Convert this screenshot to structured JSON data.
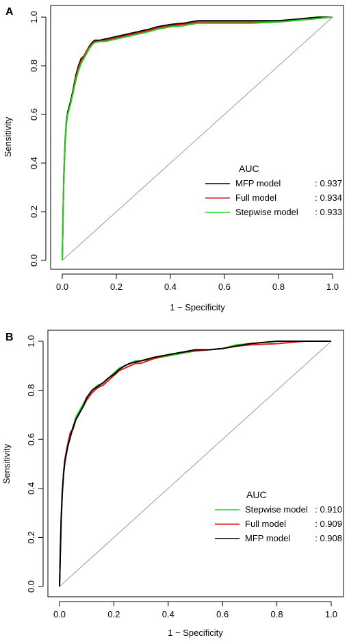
{
  "chart_data": [
    {
      "type": "line",
      "panel_label": "A",
      "xlabel": "1 − Specificity",
      "ylabel": "Sensitivity",
      "xlim": [
        0,
        1
      ],
      "ylim": [
        0,
        1
      ],
      "xticks": [
        "0.0",
        "0.2",
        "0.4",
        "0.6",
        "0.8",
        "1.0"
      ],
      "yticks": [
        "0.0",
        "0.2",
        "0.4",
        "0.6",
        "0.8",
        "1.0"
      ],
      "grid": false,
      "reference_line": {
        "x": [
          0,
          1
        ],
        "y": [
          0,
          1
        ],
        "color": "#999999"
      },
      "legend": {
        "title": "AUC",
        "position": "bottom-right",
        "entries": [
          {
            "label": "MFP model",
            "value": ": 0.937",
            "color": "#000000"
          },
          {
            "label": "Full model",
            "value": ": 0.934",
            "color": "#e31a1c"
          },
          {
            "label": "Stepwise model",
            "value": ": 0.933",
            "color": "#1fd11f"
          }
        ]
      },
      "series": [
        {
          "name": "MFP model",
          "color": "#000000",
          "x": [
            0,
            0.003,
            0.006,
            0.01,
            0.015,
            0.02,
            0.03,
            0.04,
            0.05,
            0.06,
            0.07,
            0.08,
            0.09,
            0.1,
            0.11,
            0.12,
            0.14,
            0.16,
            0.18,
            0.2,
            0.22,
            0.24,
            0.26,
            0.28,
            0.3,
            0.32,
            0.35,
            0.4,
            0.45,
            0.5,
            0.6,
            0.7,
            0.8,
            0.85,
            0.9,
            0.95,
            1.0
          ],
          "y": [
            0,
            0.2,
            0.36,
            0.48,
            0.57,
            0.61,
            0.65,
            0.7,
            0.76,
            0.8,
            0.83,
            0.84,
            0.86,
            0.88,
            0.895,
            0.905,
            0.905,
            0.91,
            0.915,
            0.92,
            0.925,
            0.93,
            0.935,
            0.94,
            0.945,
            0.95,
            0.96,
            0.97,
            0.975,
            0.985,
            0.985,
            0.985,
            0.985,
            0.99,
            0.995,
            1.0,
            1.0
          ]
        },
        {
          "name": "Full model",
          "color": "#e31a1c",
          "x": [
            0,
            0.003,
            0.006,
            0.01,
            0.015,
            0.02,
            0.03,
            0.04,
            0.05,
            0.06,
            0.07,
            0.08,
            0.09,
            0.1,
            0.11,
            0.12,
            0.14,
            0.16,
            0.18,
            0.2,
            0.22,
            0.24,
            0.26,
            0.28,
            0.3,
            0.32,
            0.35,
            0.4,
            0.45,
            0.5,
            0.6,
            0.7,
            0.8,
            0.85,
            0.9,
            0.95,
            1.0
          ],
          "y": [
            0,
            0.2,
            0.35,
            0.47,
            0.56,
            0.6,
            0.64,
            0.69,
            0.75,
            0.79,
            0.82,
            0.84,
            0.86,
            0.875,
            0.89,
            0.9,
            0.9,
            0.905,
            0.91,
            0.915,
            0.92,
            0.925,
            0.93,
            0.935,
            0.94,
            0.945,
            0.955,
            0.965,
            0.97,
            0.98,
            0.98,
            0.98,
            0.98,
            0.985,
            0.99,
            0.995,
            1.0
          ]
        },
        {
          "name": "Stepwise model",
          "color": "#1fd11f",
          "x": [
            0,
            0.003,
            0.006,
            0.01,
            0.015,
            0.02,
            0.03,
            0.04,
            0.05,
            0.06,
            0.07,
            0.08,
            0.09,
            0.1,
            0.11,
            0.12,
            0.14,
            0.16,
            0.18,
            0.2,
            0.22,
            0.24,
            0.26,
            0.28,
            0.3,
            0.32,
            0.35,
            0.4,
            0.45,
            0.5,
            0.6,
            0.7,
            0.8,
            0.85,
            0.9,
            0.95,
            1.0
          ],
          "y": [
            0,
            0.2,
            0.35,
            0.47,
            0.56,
            0.6,
            0.64,
            0.69,
            0.74,
            0.78,
            0.81,
            0.83,
            0.85,
            0.87,
            0.885,
            0.895,
            0.9,
            0.9,
            0.905,
            0.91,
            0.915,
            0.92,
            0.925,
            0.93,
            0.935,
            0.94,
            0.95,
            0.96,
            0.965,
            0.975,
            0.975,
            0.975,
            0.98,
            0.985,
            0.99,
            0.995,
            1.0
          ]
        }
      ]
    },
    {
      "type": "line",
      "panel_label": "B",
      "xlabel": "1 − Specificity",
      "ylabel": "Sensitivity",
      "xlim": [
        0,
        1
      ],
      "ylim": [
        0,
        1
      ],
      "xticks": [
        "0.0",
        "0.2",
        "0.4",
        "0.6",
        "0.8",
        "1.0"
      ],
      "yticks": [
        "0.0",
        "0.2",
        "0.4",
        "0.6",
        "0.8",
        "1.0"
      ],
      "grid": false,
      "reference_line": {
        "x": [
          0,
          1
        ],
        "y": [
          0,
          1
        ],
        "color": "#999999"
      },
      "legend": {
        "title": "AUC",
        "position": "bottom-right",
        "entries": [
          {
            "label": "Stepwise model",
            "value": ": 0.910",
            "color": "#1fd11f"
          },
          {
            "label": "Full model",
            "value": ": 0.909",
            "color": "#e31a1c"
          },
          {
            "label": "MFP model",
            "value": ": 0.908",
            "color": "#000000"
          }
        ]
      },
      "series": [
        {
          "name": "Stepwise model",
          "color": "#1fd11f",
          "x": [
            0,
            0.003,
            0.006,
            0.01,
            0.015,
            0.02,
            0.03,
            0.04,
            0.05,
            0.06,
            0.07,
            0.08,
            0.09,
            0.1,
            0.12,
            0.14,
            0.16,
            0.18,
            0.2,
            0.22,
            0.24,
            0.26,
            0.28,
            0.3,
            0.35,
            0.4,
            0.45,
            0.5,
            0.55,
            0.6,
            0.65,
            0.7,
            0.8,
            0.9,
            1.0
          ],
          "y": [
            0,
            0.15,
            0.27,
            0.38,
            0.46,
            0.51,
            0.57,
            0.62,
            0.65,
            0.69,
            0.71,
            0.73,
            0.75,
            0.77,
            0.8,
            0.82,
            0.83,
            0.85,
            0.87,
            0.89,
            0.9,
            0.91,
            0.92,
            0.92,
            0.93,
            0.94,
            0.95,
            0.96,
            0.965,
            0.97,
            0.985,
            0.99,
            1.0,
            1.0,
            1.0
          ]
        },
        {
          "name": "Full model",
          "color": "#e31a1c",
          "x": [
            0,
            0.003,
            0.006,
            0.01,
            0.015,
            0.02,
            0.03,
            0.04,
            0.05,
            0.06,
            0.07,
            0.08,
            0.09,
            0.1,
            0.12,
            0.14,
            0.16,
            0.18,
            0.2,
            0.22,
            0.24,
            0.26,
            0.28,
            0.3,
            0.35,
            0.4,
            0.45,
            0.5,
            0.55,
            0.6,
            0.65,
            0.7,
            0.8,
            0.9,
            1.0
          ],
          "y": [
            0,
            0.15,
            0.28,
            0.39,
            0.47,
            0.52,
            0.58,
            0.63,
            0.64,
            0.68,
            0.7,
            0.72,
            0.74,
            0.76,
            0.79,
            0.81,
            0.82,
            0.84,
            0.86,
            0.88,
            0.89,
            0.9,
            0.91,
            0.91,
            0.93,
            0.945,
            0.955,
            0.96,
            0.965,
            0.97,
            0.98,
            0.985,
            0.99,
            1.0,
            1.0
          ]
        },
        {
          "name": "MFP model",
          "color": "#000000",
          "x": [
            0,
            0.003,
            0.006,
            0.01,
            0.015,
            0.02,
            0.03,
            0.04,
            0.05,
            0.06,
            0.07,
            0.08,
            0.09,
            0.1,
            0.12,
            0.14,
            0.16,
            0.18,
            0.2,
            0.22,
            0.24,
            0.26,
            0.28,
            0.3,
            0.35,
            0.4,
            0.45,
            0.5,
            0.55,
            0.6,
            0.65,
            0.7,
            0.8,
            0.9,
            1.0
          ],
          "y": [
            0,
            0.14,
            0.27,
            0.38,
            0.46,
            0.51,
            0.57,
            0.61,
            0.65,
            0.68,
            0.7,
            0.72,
            0.74,
            0.77,
            0.8,
            0.815,
            0.83,
            0.85,
            0.865,
            0.885,
            0.9,
            0.91,
            0.915,
            0.92,
            0.935,
            0.945,
            0.955,
            0.965,
            0.965,
            0.97,
            0.98,
            0.99,
            1.0,
            1.0,
            1.0
          ]
        }
      ]
    }
  ]
}
